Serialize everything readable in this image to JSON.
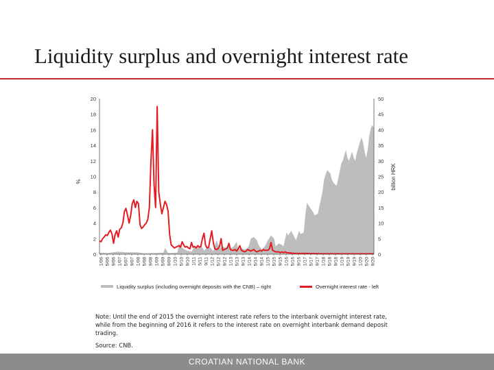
{
  "slide": {
    "title": "Liquidity surplus and overnight interest rate",
    "note": "Note: Until the end of 2015 the overnight interest rate refers to the interbank overnight interest rate, while from the beginning of 2016 it refers to the interest rate on overnight interbank demand deposit trading.",
    "source": "Source: CNB.",
    "footer": "CROATIAN NATIONAL BANK"
  },
  "colors": {
    "accent": "#c0282d",
    "area": "#bdbdbd",
    "line": "#e31b23",
    "footer": "#8c8c8c"
  },
  "chart_data": {
    "type": "area+line",
    "x_start": "2006-01",
    "x_end": "2020-09",
    "x_tick_labels": [
      "1/06",
      "5/06",
      "9/06",
      "1/07",
      "5/07",
      "9/07",
      "1/08",
      "5/08",
      "9/08",
      "1/09",
      "5/09",
      "9/09",
      "1/10",
      "5/10",
      "9/10",
      "1/11",
      "5/11",
      "9/11",
      "1/12",
      "5/12",
      "9/12",
      "1/13",
      "5/13",
      "9/13",
      "1/14",
      "5/14",
      "9/14",
      "1/15",
      "5/15",
      "9/15",
      "1/16",
      "5/16",
      "9/16",
      "1/17",
      "5/17",
      "9/17",
      "1/18",
      "5/18",
      "9/18",
      "1/19",
      "5/19",
      "9/19",
      "1/20",
      "5/20",
      "9/20"
    ],
    "y_left": {
      "label": "%",
      "min": 0,
      "max": 20,
      "ticks": [
        0,
        2,
        4,
        6,
        8,
        10,
        12,
        14,
        16,
        18,
        20
      ]
    },
    "y_right": {
      "label": "billion HRK",
      "min": 0,
      "max": 50,
      "ticks": [
        0,
        5,
        10,
        15,
        20,
        25,
        30,
        35,
        40,
        45,
        50
      ]
    },
    "legend": {
      "placement": "bottom"
    },
    "series": [
      {
        "name": "Liquidity surplus (including overnight deposits with the CNB) – right",
        "kind": "area",
        "axis": "right",
        "points": [
          [
            "2006-01",
            0.5
          ],
          [
            "2006-06",
            0.4
          ],
          [
            "2007-01",
            0.8
          ],
          [
            "2007-06",
            0.6
          ],
          [
            "2008-01",
            0.6
          ],
          [
            "2008-06",
            0.3
          ],
          [
            "2009-01",
            0.4
          ],
          [
            "2009-06",
            0.5
          ],
          [
            "2009-07",
            2.0
          ],
          [
            "2009-09",
            0.4
          ],
          [
            "2010-03",
            0.5
          ],
          [
            "2010-04",
            3.5
          ],
          [
            "2010-06",
            2.0
          ],
          [
            "2010-09",
            1.2
          ],
          [
            "2010-12",
            0.8
          ],
          [
            "2011-02",
            2.5
          ],
          [
            "2011-04",
            2.0
          ],
          [
            "2011-06",
            3.0
          ],
          [
            "2011-08",
            1.2
          ],
          [
            "2011-10",
            2.0
          ],
          [
            "2011-12",
            2.2
          ],
          [
            "2012-02",
            1.0
          ],
          [
            "2012-03",
            2.5
          ],
          [
            "2012-04",
            4.5
          ],
          [
            "2012-06",
            2.0
          ],
          [
            "2012-08",
            2.5
          ],
          [
            "2012-10",
            2.0
          ],
          [
            "2012-12",
            3.0
          ],
          [
            "2013-01",
            1.8
          ],
          [
            "2013-03",
            2.5
          ],
          [
            "2013-05",
            4.0
          ],
          [
            "2013-06",
            1.5
          ],
          [
            "2013-08",
            2.0
          ],
          [
            "2013-10",
            1.5
          ],
          [
            "2013-12",
            2.0
          ],
          [
            "2014-01",
            3.0
          ],
          [
            "2014-02",
            5.0
          ],
          [
            "2014-04",
            5.5
          ],
          [
            "2014-06",
            4.5
          ],
          [
            "2014-07",
            3.0
          ],
          [
            "2014-09",
            1.5
          ],
          [
            "2014-11",
            2.5
          ],
          [
            "2015-01",
            4.5
          ],
          [
            "2015-03",
            6.0
          ],
          [
            "2015-05",
            5.0
          ],
          [
            "2015-06",
            2.5
          ],
          [
            "2015-08",
            3.5
          ],
          [
            "2015-10",
            3.0
          ],
          [
            "2015-11",
            2.5
          ],
          [
            "2016-01",
            7.0
          ],
          [
            "2016-02",
            6.0
          ],
          [
            "2016-04",
            7.5
          ],
          [
            "2016-06",
            5.5
          ],
          [
            "2016-07",
            4.5
          ],
          [
            "2016-09",
            7.5
          ],
          [
            "2016-10",
            6.5
          ],
          [
            "2016-12",
            7.0
          ],
          [
            "2017-01",
            12.5
          ],
          [
            "2017-02",
            16.5
          ],
          [
            "2017-04",
            15.0
          ],
          [
            "2017-06",
            13.5
          ],
          [
            "2017-07",
            12.5
          ],
          [
            "2017-09",
            13.0
          ],
          [
            "2017-10",
            15.5
          ],
          [
            "2017-12",
            20.0
          ],
          [
            "2018-01",
            24.0
          ],
          [
            "2018-03",
            27.0
          ],
          [
            "2018-05",
            26.0
          ],
          [
            "2018-06",
            24.0
          ],
          [
            "2018-07",
            23.0
          ],
          [
            "2018-09",
            22.0
          ],
          [
            "2018-10",
            24.0
          ],
          [
            "2018-12",
            29.0
          ],
          [
            "2019-01",
            30.0
          ],
          [
            "2019-03",
            33.5
          ],
          [
            "2019-04",
            31.0
          ],
          [
            "2019-05",
            30.0
          ],
          [
            "2019-06",
            31.5
          ],
          [
            "2019-07",
            33.0
          ],
          [
            "2019-08",
            31.0
          ],
          [
            "2019-09",
            30.0
          ],
          [
            "2019-10",
            32.5
          ],
          [
            "2019-12",
            36.0
          ],
          [
            "2020-01",
            37.5
          ],
          [
            "2020-02",
            36.0
          ],
          [
            "2020-03",
            33.0
          ],
          [
            "2020-04",
            31.0
          ],
          [
            "2020-05",
            33.5
          ],
          [
            "2020-06",
            38.0
          ],
          [
            "2020-07",
            40.5
          ],
          [
            "2020-08",
            41.5
          ],
          [
            "2020-09",
            40.5
          ]
        ]
      },
      {
        "name": "Overnight interest rate - left",
        "kind": "line",
        "axis": "left",
        "points": [
          [
            "2006-01",
            1.7
          ],
          [
            "2006-02",
            1.6
          ],
          [
            "2006-03",
            2.0
          ],
          [
            "2006-04",
            2.2
          ],
          [
            "2006-05",
            2.5
          ],
          [
            "2006-06",
            2.4
          ],
          [
            "2006-07",
            2.8
          ],
          [
            "2006-08",
            3.1
          ],
          [
            "2006-09",
            2.6
          ],
          [
            "2006-10",
            1.4
          ],
          [
            "2006-11",
            2.5
          ],
          [
            "2006-12",
            3.0
          ],
          [
            "2007-01",
            2.2
          ],
          [
            "2007-02",
            3.2
          ],
          [
            "2007-03",
            3.4
          ],
          [
            "2007-04",
            4.0
          ],
          [
            "2007-05",
            5.5
          ],
          [
            "2007-06",
            5.9
          ],
          [
            "2007-07",
            5.0
          ],
          [
            "2007-08",
            4.0
          ],
          [
            "2007-09",
            5.0
          ],
          [
            "2007-10",
            6.5
          ],
          [
            "2007-11",
            7.0
          ],
          [
            "2007-12",
            6.0
          ],
          [
            "2008-01",
            6.8
          ],
          [
            "2008-02",
            6.5
          ],
          [
            "2008-03",
            3.8
          ],
          [
            "2008-04",
            3.3
          ],
          [
            "2008-05",
            3.5
          ],
          [
            "2008-06",
            3.8
          ],
          [
            "2008-07",
            4.0
          ],
          [
            "2008-08",
            4.5
          ],
          [
            "2008-09",
            6.0
          ],
          [
            "2008-10",
            12.0
          ],
          [
            "2008-11",
            16.0
          ],
          [
            "2008-12",
            9.0
          ],
          [
            "2009-01",
            6.0
          ],
          [
            "2009-02",
            19.0
          ],
          [
            "2009-03",
            8.0
          ],
          [
            "2009-04",
            6.5
          ],
          [
            "2009-05",
            5.2
          ],
          [
            "2009-06",
            6.0
          ],
          [
            "2009-07",
            6.8
          ],
          [
            "2009-08",
            6.4
          ],
          [
            "2009-09",
            5.5
          ],
          [
            "2009-10",
            2.5
          ],
          [
            "2009-11",
            1.2
          ],
          [
            "2009-12",
            1.0
          ],
          [
            "2010-01",
            0.8
          ],
          [
            "2010-02",
            0.9
          ],
          [
            "2010-03",
            1.0
          ],
          [
            "2010-04",
            1.1
          ],
          [
            "2010-05",
            0.9
          ],
          [
            "2010-06",
            1.6
          ],
          [
            "2010-07",
            1.2
          ],
          [
            "2010-08",
            0.9
          ],
          [
            "2010-09",
            1.0
          ],
          [
            "2010-10",
            0.8
          ],
          [
            "2010-11",
            0.7
          ],
          [
            "2010-12",
            1.5
          ],
          [
            "2011-01",
            0.9
          ],
          [
            "2011-02",
            1.0
          ],
          [
            "2011-03",
            0.8
          ],
          [
            "2011-04",
            1.1
          ],
          [
            "2011-05",
            0.9
          ],
          [
            "2011-06",
            1.0
          ],
          [
            "2011-07",
            2.0
          ],
          [
            "2011-08",
            2.7
          ],
          [
            "2011-09",
            1.2
          ],
          [
            "2011-10",
            0.8
          ],
          [
            "2011-11",
            0.9
          ],
          [
            "2011-12",
            2.0
          ],
          [
            "2012-01",
            3.0
          ],
          [
            "2012-02",
            1.5
          ],
          [
            "2012-03",
            0.7
          ],
          [
            "2012-04",
            0.6
          ],
          [
            "2012-05",
            0.7
          ],
          [
            "2012-06",
            1.0
          ],
          [
            "2012-07",
            2.0
          ],
          [
            "2012-08",
            0.5
          ],
          [
            "2012-09",
            0.6
          ],
          [
            "2012-10",
            0.7
          ],
          [
            "2012-11",
            0.8
          ],
          [
            "2012-12",
            1.4
          ],
          [
            "2013-01",
            0.6
          ],
          [
            "2013-02",
            0.5
          ],
          [
            "2013-03",
            0.5
          ],
          [
            "2013-04",
            0.6
          ],
          [
            "2013-05",
            0.4
          ],
          [
            "2013-06",
            0.7
          ],
          [
            "2013-07",
            1.1
          ],
          [
            "2013-08",
            0.5
          ],
          [
            "2013-09",
            0.4
          ],
          [
            "2013-10",
            0.3
          ],
          [
            "2013-11",
            0.4
          ],
          [
            "2013-12",
            0.6
          ],
          [
            "2014-01",
            0.5
          ],
          [
            "2014-02",
            0.4
          ],
          [
            "2014-03",
            0.5
          ],
          [
            "2014-04",
            0.6
          ],
          [
            "2014-05",
            0.4
          ],
          [
            "2014-06",
            0.3
          ],
          [
            "2014-07",
            0.4
          ],
          [
            "2014-08",
            0.5
          ],
          [
            "2014-09",
            0.4
          ],
          [
            "2014-10",
            0.6
          ],
          [
            "2014-11",
            0.5
          ],
          [
            "2014-12",
            0.5
          ],
          [
            "2015-01",
            0.5
          ],
          [
            "2015-02",
            0.7
          ],
          [
            "2015-03",
            1.5
          ],
          [
            "2015-04",
            0.5
          ],
          [
            "2015-05",
            0.4
          ],
          [
            "2015-06",
            0.3
          ],
          [
            "2015-07",
            0.3
          ],
          [
            "2015-08",
            0.3
          ],
          [
            "2015-09",
            0.2
          ],
          [
            "2015-10",
            0.3
          ],
          [
            "2015-11",
            0.2
          ],
          [
            "2015-12",
            0.3
          ],
          [
            "2016-01",
            0.2
          ],
          [
            "2016-06",
            0.1
          ],
          [
            "2017-01",
            0.1
          ],
          [
            "2018-01",
            0.05
          ],
          [
            "2019-01",
            0.05
          ],
          [
            "2020-01",
            0.05
          ],
          [
            "2020-09",
            0.05
          ]
        ]
      }
    ]
  }
}
